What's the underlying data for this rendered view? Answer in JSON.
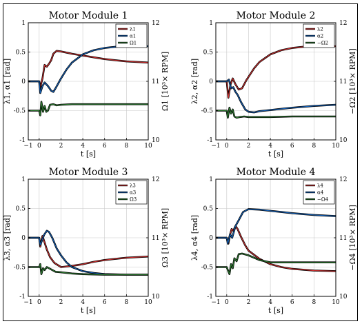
{
  "figure_border": true,
  "chart_data": [
    {
      "type": "line",
      "title": "Motor Module 1",
      "xlabel": "t [s]",
      "ylabel_left": "λ1, α1 [rad]",
      "ylabel_right": "Ω1 [10³× RPM]",
      "xlim": [
        -1,
        10
      ],
      "ylim_left": [
        -1,
        1
      ],
      "ylim_right": [
        10,
        12
      ],
      "xticks": [
        "−1",
        "0",
        "2",
        "4",
        "6",
        "8",
        "10"
      ],
      "yticks_left": [
        "-1",
        "-0.5",
        "0",
        "0.5",
        "1"
      ],
      "yticks_right": [
        "10",
        "11",
        "12"
      ],
      "grid": true,
      "legend_position": "top-right",
      "series": [
        {
          "name": "λ1",
          "color": "#d32f2f",
          "axis": "left",
          "points": [
            [
              -1,
              0
            ],
            [
              0,
              0
            ],
            [
              0.1,
              -0.1
            ],
            [
              0.3,
              0.05
            ],
            [
              0.5,
              0.28
            ],
            [
              0.7,
              0.25
            ],
            [
              0.9,
              0.3
            ],
            [
              1.1,
              0.36
            ],
            [
              1.3,
              0.47
            ],
            [
              1.6,
              0.52
            ],
            [
              2,
              0.51
            ],
            [
              2.5,
              0.49
            ],
            [
              3,
              0.47
            ],
            [
              4,
              0.44
            ],
            [
              5,
              0.41
            ],
            [
              6,
              0.38
            ],
            [
              7,
              0.36
            ],
            [
              8,
              0.34
            ],
            [
              9,
              0.33
            ],
            [
              10,
              0.32
            ]
          ]
        },
        {
          "name": "α1",
          "color": "#1565c0",
          "axis": "left",
          "points": [
            [
              -1,
              0
            ],
            [
              0,
              0
            ],
            [
              0.1,
              -0.2
            ],
            [
              0.3,
              -0.08
            ],
            [
              0.5,
              -0.02
            ],
            [
              0.8,
              -0.08
            ],
            [
              1.1,
              -0.16
            ],
            [
              1.3,
              -0.18
            ],
            [
              1.5,
              -0.12
            ],
            [
              2,
              0.05
            ],
            [
              2.5,
              0.2
            ],
            [
              3,
              0.32
            ],
            [
              4,
              0.46
            ],
            [
              5,
              0.53
            ],
            [
              6,
              0.57
            ],
            [
              7,
              0.59
            ],
            [
              8,
              0.6
            ],
            [
              9,
              0.6
            ],
            [
              10,
              0.6
            ]
          ]
        },
        {
          "name": "Ω1",
          "color": "#2e7d32",
          "axis": "right",
          "points": [
            [
              -1,
              10.5
            ],
            [
              0,
              10.5
            ],
            [
              0.1,
              10.42
            ],
            [
              0.2,
              10.65
            ],
            [
              0.35,
              10.48
            ],
            [
              0.5,
              10.58
            ],
            [
              0.65,
              10.48
            ],
            [
              0.8,
              10.5
            ],
            [
              1,
              10.6
            ],
            [
              1.3,
              10.61
            ],
            [
              1.6,
              10.59
            ],
            [
              2,
              10.6
            ],
            [
              3,
              10.61
            ],
            [
              4,
              10.61
            ],
            [
              6,
              10.61
            ],
            [
              8,
              10.61
            ],
            [
              10,
              10.61
            ]
          ]
        }
      ]
    },
    {
      "type": "line",
      "title": "Motor Module 2",
      "xlabel": "t [s]",
      "ylabel_left": "λ2, α2 [rad]",
      "ylabel_right": "−Ω2 [10³× RPM]",
      "xlim": [
        -1,
        10
      ],
      "ylim_left": [
        -1,
        1
      ],
      "ylim_right": [
        10,
        12
      ],
      "xticks": [
        "−1",
        "0",
        "2",
        "4",
        "6",
        "8",
        "10"
      ],
      "yticks_left": [
        "-1",
        "-0.5",
        "0",
        "0.5",
        "1"
      ],
      "yticks_right": [
        "10",
        "11",
        "12"
      ],
      "grid": true,
      "legend_position": "top-right",
      "series": [
        {
          "name": "λ2",
          "color": "#d32f2f",
          "axis": "left",
          "points": [
            [
              -1,
              0
            ],
            [
              0,
              0
            ],
            [
              0.15,
              -0.28
            ],
            [
              0.35,
              -0.05
            ],
            [
              0.55,
              0.05
            ],
            [
              0.8,
              -0.05
            ],
            [
              1.1,
              -0.14
            ],
            [
              1.4,
              -0.12
            ],
            [
              1.8,
              0.02
            ],
            [
              2.5,
              0.22
            ],
            [
              3,
              0.33
            ],
            [
              4,
              0.46
            ],
            [
              5,
              0.53
            ],
            [
              6,
              0.57
            ],
            [
              7,
              0.59
            ],
            [
              8,
              0.6
            ],
            [
              9,
              0.6
            ],
            [
              10,
              0.6
            ]
          ]
        },
        {
          "name": "α2",
          "color": "#1565c0",
          "axis": "left",
          "points": [
            [
              -1,
              0
            ],
            [
              0,
              0
            ],
            [
              0.2,
              0.03
            ],
            [
              0.4,
              -0.12
            ],
            [
              0.6,
              -0.1
            ],
            [
              0.8,
              -0.18
            ],
            [
              1,
              -0.23
            ],
            [
              1.3,
              -0.35
            ],
            [
              1.7,
              -0.48
            ],
            [
              2,
              -0.52
            ],
            [
              2.5,
              -0.53
            ],
            [
              3,
              -0.51
            ],
            [
              4,
              -0.49
            ],
            [
              5,
              -0.47
            ],
            [
              6,
              -0.45
            ],
            [
              8,
              -0.42
            ],
            [
              10,
              -0.4
            ]
          ]
        },
        {
          "name": "−Ω2",
          "color": "#2e7d32",
          "axis": "right",
          "points": [
            [
              -1,
              10.5
            ],
            [
              0,
              10.5
            ],
            [
              0.1,
              10.38
            ],
            [
              0.25,
              10.55
            ],
            [
              0.4,
              10.45
            ],
            [
              0.55,
              10.52
            ],
            [
              0.7,
              10.4
            ],
            [
              0.9,
              10.38
            ],
            [
              1.2,
              10.39
            ],
            [
              1.6,
              10.4
            ],
            [
              2,
              10.39
            ],
            [
              3,
              10.39
            ],
            [
              4,
              10.39
            ],
            [
              6,
              10.4
            ],
            [
              8,
              10.4
            ],
            [
              10,
              10.4
            ]
          ]
        }
      ]
    },
    {
      "type": "line",
      "title": "Motor Module 3",
      "xlabel": "t [s]",
      "ylabel_left": "λ3, α3 [rad]",
      "ylabel_right": "Ω3 [10³× RPM]",
      "xlim": [
        -1,
        10
      ],
      "ylim_left": [
        -1,
        1
      ],
      "ylim_right": [
        10,
        12
      ],
      "xticks": [
        "−1",
        "0",
        "2",
        "4",
        "6",
        "8",
        "10"
      ],
      "yticks_left": [
        "-1",
        "-0.5",
        "0",
        "0.5",
        "1"
      ],
      "yticks_right": [
        "10",
        "11",
        "12"
      ],
      "grid": true,
      "legend_position": "top-right",
      "series": [
        {
          "name": "λ3",
          "color": "#d32f2f",
          "axis": "left",
          "points": [
            [
              -1,
              0
            ],
            [
              0,
              0
            ],
            [
              0.1,
              -0.15
            ],
            [
              0.3,
              0.03
            ],
            [
              0.5,
              -0.08
            ],
            [
              0.7,
              -0.2
            ],
            [
              1,
              -0.33
            ],
            [
              1.4,
              -0.43
            ],
            [
              2,
              -0.5
            ],
            [
              3,
              -0.48
            ],
            [
              4,
              -0.45
            ],
            [
              5,
              -0.41
            ],
            [
              6,
              -0.38
            ],
            [
              7,
              -0.36
            ],
            [
              8,
              -0.34
            ],
            [
              9,
              -0.33
            ],
            [
              10,
              -0.32
            ]
          ]
        },
        {
          "name": "α3",
          "color": "#1565c0",
          "axis": "left",
          "points": [
            [
              -1,
              0
            ],
            [
              0,
              0
            ],
            [
              0.1,
              -0.12
            ],
            [
              0.25,
              -0.05
            ],
            [
              0.45,
              0.05
            ],
            [
              0.7,
              0.12
            ],
            [
              0.9,
              0.1
            ],
            [
              1.2,
              0.0
            ],
            [
              1.6,
              -0.18
            ],
            [
              2,
              -0.3
            ],
            [
              2.5,
              -0.42
            ],
            [
              3,
              -0.5
            ],
            [
              4,
              -0.57
            ],
            [
              5,
              -0.6
            ],
            [
              6,
              -0.62
            ],
            [
              8,
              -0.63
            ],
            [
              10,
              -0.63
            ]
          ]
        },
        {
          "name": "Ω3",
          "color": "#2e7d32",
          "axis": "right",
          "points": [
            [
              -1,
              10.5
            ],
            [
              0,
              10.5
            ],
            [
              0.1,
              10.55
            ],
            [
              0.2,
              10.38
            ],
            [
              0.35,
              10.48
            ],
            [
              0.5,
              10.45
            ],
            [
              0.7,
              10.5
            ],
            [
              1,
              10.47
            ],
            [
              1.5,
              10.42
            ],
            [
              2,
              10.41
            ],
            [
              3,
              10.39
            ],
            [
              4,
              10.38
            ],
            [
              6,
              10.37
            ],
            [
              8,
              10.37
            ],
            [
              10,
              10.37
            ]
          ]
        }
      ]
    },
    {
      "type": "line",
      "title": "Motor Module 4",
      "xlabel": "t [s]",
      "ylabel_left": "λ4, α4 [rad]",
      "ylabel_right": "−Ω4 [10³× RPM]",
      "xlim": [
        -1,
        10
      ],
      "ylim_left": [
        -1,
        1
      ],
      "ylim_right": [
        10,
        12
      ],
      "xticks": [
        "−1",
        "0",
        "2",
        "4",
        "6",
        "8",
        "10"
      ],
      "yticks_left": [
        "-1",
        "-0.5",
        "0",
        "0.5",
        "1"
      ],
      "yticks_right": [
        "10",
        "11",
        "12"
      ],
      "grid": true,
      "legend_position": "top-right",
      "series": [
        {
          "name": "λ4",
          "color": "#d32f2f",
          "axis": "left",
          "points": [
            [
              -1,
              0
            ],
            [
              0,
              0
            ],
            [
              0.15,
              -0.1
            ],
            [
              0.3,
              0.05
            ],
            [
              0.45,
              0.15
            ],
            [
              0.6,
              0.12
            ],
            [
              0.8,
              0.2
            ],
            [
              1,
              0.15
            ],
            [
              1.3,
              0.02
            ],
            [
              1.7,
              -0.13
            ],
            [
              2,
              -0.22
            ],
            [
              3,
              -0.36
            ],
            [
              4,
              -0.45
            ],
            [
              5,
              -0.5
            ],
            [
              6,
              -0.53
            ],
            [
              8,
              -0.56
            ],
            [
              10,
              -0.57
            ]
          ]
        },
        {
          "name": "α4",
          "color": "#1565c0",
          "axis": "left",
          "points": [
            [
              -1,
              0
            ],
            [
              0,
              0
            ],
            [
              0.1,
              -0.1
            ],
            [
              0.3,
              0.06
            ],
            [
              0.5,
              0.0
            ],
            [
              0.8,
              0.2
            ],
            [
              1.1,
              0.3
            ],
            [
              1.5,
              0.44
            ],
            [
              2,
              0.49
            ],
            [
              3,
              0.48
            ],
            [
              4,
              0.46
            ],
            [
              5,
              0.44
            ],
            [
              6,
              0.42
            ],
            [
              8,
              0.39
            ],
            [
              10,
              0.37
            ]
          ]
        },
        {
          "name": "−Ω4",
          "color": "#2e7d32",
          "axis": "right",
          "points": [
            [
              -1,
              10.5
            ],
            [
              0,
              10.5
            ],
            [
              0.1,
              10.45
            ],
            [
              0.25,
              10.38
            ],
            [
              0.4,
              10.55
            ],
            [
              0.55,
              10.48
            ],
            [
              0.7,
              10.65
            ],
            [
              0.9,
              10.6
            ],
            [
              1.1,
              10.72
            ],
            [
              1.4,
              10.73
            ],
            [
              2,
              10.7
            ],
            [
              3,
              10.62
            ],
            [
              4,
              10.58
            ],
            [
              6,
              10.58
            ],
            [
              8,
              10.58
            ],
            [
              10,
              10.58
            ]
          ]
        }
      ]
    }
  ]
}
